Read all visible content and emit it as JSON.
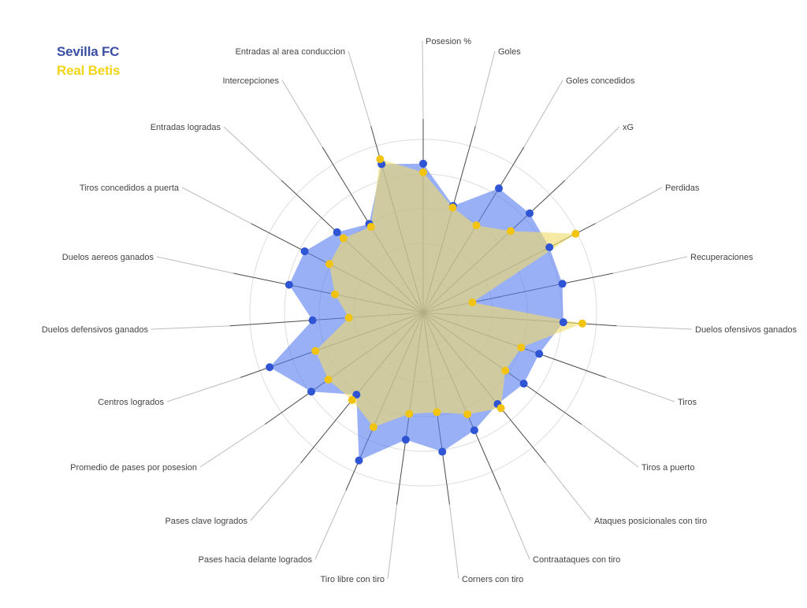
{
  "chart_data": {
    "type": "radar",
    "axes": [
      "Posesion %",
      "Goles",
      "Goles concedidos",
      "xG",
      "Perdidas",
      "Recuperaciones",
      "Duelos ofensivos ganados",
      "Tiros",
      "Tiros a puerto",
      "Ataques posicionales con tiro",
      "Contraataques con tiro",
      "Corners con tiro",
      "Tiro libre con tiro",
      "Pases hacia delante logrados",
      "Pases clave logrados",
      "Promedio de pases por posesion",
      "Centros logrados",
      "Duelos defensivos ganados",
      "Duelos aereos ganados",
      "Tiros concedidos a puerta",
      "Entradas logradas",
      "Intercepciones",
      "Entradas al area conduccion"
    ],
    "rmax": 1.0,
    "rings": [
      0.2,
      0.4,
      0.6,
      0.8,
      1.0
    ],
    "grid": true,
    "legend_position": "top-left",
    "series": [
      {
        "name": "Sevilla FC",
        "color": "#2f55d4",
        "fill": "#5b7ef0",
        "label_color": "#3a4fa3",
        "values": [
          0.86,
          0.64,
          0.84,
          0.84,
          0.82,
          0.82,
          0.81,
          0.71,
          0.71,
          0.68,
          0.74,
          0.81,
          0.74,
          0.93,
          0.61,
          0.79,
          0.94,
          0.64,
          0.79,
          0.77,
          0.68,
          0.6,
          0.89
        ]
      },
      {
        "name": "Real Betis",
        "color": "#f2c40f",
        "fill": "#f0dc6a",
        "label_color": "#f2d41a",
        "values": [
          0.81,
          0.63,
          0.59,
          0.69,
          0.99,
          0.29,
          0.92,
          0.6,
          0.58,
          0.71,
          0.64,
          0.58,
          0.59,
          0.72,
          0.65,
          0.67,
          0.66,
          0.43,
          0.52,
          0.61,
          0.63,
          0.58,
          0.92
        ]
      }
    ]
  }
}
